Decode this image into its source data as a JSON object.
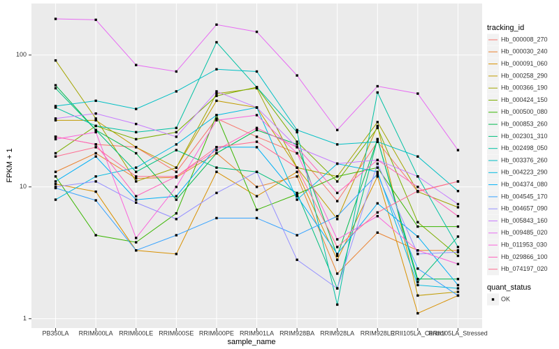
{
  "chart_data": {
    "type": "line",
    "y_label": "FPKM + 1",
    "x_label": "sample_name",
    "legend_title": "tracking_id",
    "legend_position": "right",
    "shape_legend_title": "quant_status",
    "shape_legend_entries": [
      "OK"
    ],
    "log_y": true,
    "grid": true,
    "categories": [
      "PB350LA",
      "RRIM600LA",
      "RRIM600LE",
      "RRIM600SE",
      "RRIM600PE",
      "RRIM901LA",
      "RRIM928BA",
      "RRIM928LA",
      "RRIM928LE",
      "RRII105LA_Control",
      "RRII105LA_Stressed"
    ],
    "ylim": [
      0.85,
      246
    ],
    "yticks": [
      1,
      10,
      100
    ],
    "series": [
      {
        "name": "Hb_000008_270",
        "color": "#F8766D",
        "values": [
          24,
          21,
          20,
          13,
          33,
          24,
          18,
          7.8,
          22,
          9.2,
          11
        ]
      },
      {
        "name": "Hb_000030_240",
        "color": "#EA8331",
        "values": [
          13,
          18,
          11.6,
          11.8,
          18,
          10,
          12,
          2.2,
          4.5,
          3.3,
          3.3
        ]
      },
      {
        "name": "Hb_000091_060",
        "color": "#D89000",
        "values": [
          10.5,
          9.2,
          3.3,
          3.1,
          13,
          8.5,
          13,
          2.8,
          12,
          1.1,
          1.5
        ]
      },
      {
        "name": "Hb_000258_290",
        "color": "#C09B00",
        "values": [
          32,
          32,
          20,
          14,
          45,
          40,
          14,
          5.7,
          29,
          1.5,
          1.6
        ]
      },
      {
        "name": "Hb_000366_190",
        "color": "#A3A500",
        "values": [
          91,
          33,
          11,
          14,
          51,
          56,
          14,
          12,
          31,
          9.2,
          7
        ]
      },
      {
        "name": "Hb_000424_150",
        "color": "#7CAE00",
        "values": [
          18,
          29,
          23,
          26,
          49,
          57,
          22,
          11,
          28,
          5.4,
          3.0
        ]
      },
      {
        "name": "Hb_000500_080",
        "color": "#39B600",
        "values": [
          12,
          4.3,
          3.8,
          6.3,
          35,
          6.7,
          8.8,
          12,
          14,
          5.0,
          5
        ]
      },
      {
        "name": "Hb_000853_260",
        "color": "#00BB4E",
        "values": [
          59,
          27,
          18,
          8,
          18,
          27,
          21,
          3,
          23,
          2,
          2
        ]
      },
      {
        "name": "Hb_002301_310",
        "color": "#00BF7D",
        "values": [
          56,
          27,
          13,
          19,
          14,
          13,
          9,
          1.7,
          23,
          1.9,
          4.2
        ]
      },
      {
        "name": "Hb_002498_050",
        "color": "#00C1A3",
        "values": [
          40,
          29,
          26,
          28,
          125,
          57,
          26,
          1.28,
          52,
          12,
          3.5
        ]
      },
      {
        "name": "Hb_003376_260",
        "color": "#00BFC4",
        "values": [
          41,
          45,
          39,
          53,
          78,
          75,
          27,
          21,
          22,
          17,
          9.3
        ]
      },
      {
        "name": "Hb_004223_290",
        "color": "#00BAE0",
        "values": [
          8,
          12,
          14,
          21,
          35,
          40,
          8,
          15,
          13,
          1.8,
          1.7
        ]
      },
      {
        "name": "Hb_004374_080",
        "color": "#00B0F6",
        "values": [
          11,
          17,
          8,
          8.5,
          20,
          20,
          8.5,
          3.1,
          7.5,
          4.2,
          1.8
        ]
      },
      {
        "name": "Hb_004545_170",
        "color": "#35A2FF",
        "values": [
          9.8,
          7.9,
          3.3,
          4.3,
          5.8,
          5.8,
          4.3,
          6,
          12.5,
          2.4,
          1.5
        ]
      },
      {
        "name": "Hb_004657_090",
        "color": "#9590FF",
        "values": [
          10,
          11,
          7.6,
          5.7,
          9,
          13,
          2.8,
          1.7,
          15,
          3.1,
          3.2
        ]
      },
      {
        "name": "Hb_005843_160",
        "color": "#C77CFF",
        "values": [
          33,
          36,
          30,
          24,
          53,
          40,
          20,
          15,
          16,
          12,
          7.4
        ]
      },
      {
        "name": "Hb_009485_020",
        "color": "#E76BF3",
        "values": [
          188,
          185,
          84,
          75,
          170,
          150,
          70,
          27,
          58,
          51,
          19
        ]
      },
      {
        "name": "Hb_011953_030",
        "color": "#FA62DB",
        "values": [
          23,
          26,
          4.1,
          10,
          32,
          35,
          18,
          4,
          6,
          3.3,
          2.6
        ]
      },
      {
        "name": "Hb_029866_100",
        "color": "#FF62BC",
        "values": [
          24,
          21,
          8.5,
          12,
          19,
          28,
          20,
          9,
          16,
          10,
          6
        ]
      },
      {
        "name": "Hb_074197_020",
        "color": "#FF6C91",
        "values": [
          17,
          20,
          12,
          12,
          20,
          22,
          14,
          3.5,
          6.4,
          9.3,
          11
        ]
      }
    ]
  }
}
